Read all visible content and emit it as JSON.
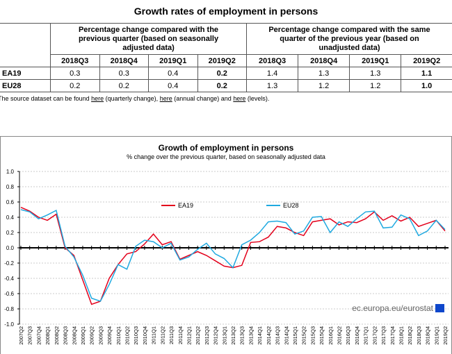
{
  "table": {
    "title": "Growth rates of employment in persons",
    "group_headers": [
      "Percentage change compared with the previous quarter (based on seasonally adjusted data)",
      "Percentage change compared with the same quarter of the previous year (based on unadjusted data)"
    ],
    "columns": [
      "2018Q3",
      "2018Q4",
      "2019Q1",
      "2019Q2",
      "2018Q3",
      "2018Q4",
      "2019Q1",
      "2019Q2"
    ],
    "rows": [
      [
        "EA19",
        "0.3",
        "0.3",
        "0.4",
        "0.2",
        "1.4",
        "1.3",
        "1.3",
        "1.1"
      ],
      [
        "EU28",
        "0.2",
        "0.2",
        "0.4",
        "0.2",
        "1.3",
        "1.2",
        "1.2",
        "1.0"
      ]
    ]
  },
  "source_note": [
    "The source dataset can be found",
    "here",
    "(quarterly change),",
    "here",
    "(annual change) and",
    "here",
    "(levels)."
  ],
  "chart_data": {
    "type": "line",
    "title": "Growth of employment in persons",
    "subtitle": "% change over the previous quarter, based on seasonally adjusted data",
    "credit": "ec.europa.eu/eurostat",
    "categories": [
      "2007Q2",
      "2007Q3",
      "2007Q4",
      "2008Q1",
      "2008Q2",
      "2008Q3",
      "2008Q4",
      "2009Q1",
      "2009Q2",
      "2009Q3",
      "2009Q4",
      "2010Q1",
      "2010Q2",
      "2010Q3",
      "2010Q4",
      "2011Q1",
      "2011Q2",
      "2011Q3",
      "2011Q4",
      "2012Q1",
      "2012Q2",
      "2012Q3",
      "2012Q4",
      "2013Q1",
      "2013Q2",
      "2013Q3",
      "2013Q4",
      "2014Q1",
      "2014Q2",
      "2014Q3",
      "2014Q4",
      "2015Q1",
      "2015Q2",
      "2015Q3",
      "2015Q4",
      "2016Q1",
      "2016Q2",
      "2016Q3",
      "2016Q4",
      "2017Q1",
      "2017Q2",
      "2017Q3",
      "2017Q4",
      "2018Q1",
      "2018Q2",
      "2018Q3",
      "2018Q4",
      "2019Q1",
      "2019Q2"
    ],
    "series": [
      {
        "name": "EA19",
        "color": "#e3001b",
        "values": [
          0.53,
          0.48,
          0.4,
          0.36,
          0.44,
          0.0,
          -0.1,
          -0.42,
          -0.74,
          -0.7,
          -0.4,
          -0.22,
          -0.08,
          -0.05,
          0.05,
          0.18,
          0.04,
          0.08,
          -0.15,
          -0.1,
          -0.05,
          -0.1,
          -0.17,
          -0.24,
          -0.26,
          -0.23,
          0.07,
          0.08,
          0.14,
          0.28,
          0.26,
          0.2,
          0.16,
          0.34,
          0.36,
          0.38,
          0.3,
          0.34,
          0.33,
          0.38,
          0.47,
          0.36,
          0.42,
          0.35,
          0.4,
          0.28,
          0.32,
          0.36,
          0.22
        ]
      },
      {
        "name": "EU28",
        "color": "#1fa9e0",
        "values": [
          0.5,
          0.47,
          0.38,
          0.43,
          0.49,
          0.02,
          -0.12,
          -0.36,
          -0.66,
          -0.7,
          -0.48,
          -0.22,
          -0.28,
          0.02,
          0.1,
          0.08,
          0.0,
          0.06,
          -0.16,
          -0.12,
          -0.02,
          0.06,
          -0.08,
          -0.14,
          -0.26,
          0.04,
          0.1,
          0.2,
          0.34,
          0.35,
          0.33,
          0.18,
          0.22,
          0.4,
          0.41,
          0.2,
          0.34,
          0.28,
          0.38,
          0.47,
          0.48,
          0.26,
          0.27,
          0.43,
          0.38,
          0.16,
          0.22,
          0.36,
          0.24
        ]
      }
    ],
    "ylim": [
      -1,
      1
    ],
    "yticks": [
      {
        "value": -1,
        "label": "-1.0"
      },
      -0.8,
      -0.6,
      -0.4,
      -0.2,
      {
        "value": 0,
        "label": "0.0"
      },
      0.2,
      0.4,
      0.6,
      0.8,
      {
        "value": 1,
        "label": "1.0"
      }
    ],
    "grid": true
  }
}
